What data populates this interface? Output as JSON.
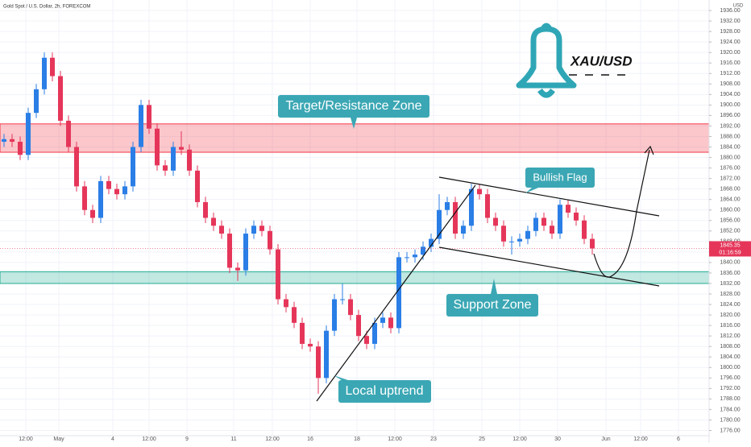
{
  "chart_data": {
    "type": "candlestick",
    "title": "Gold Spot / U.S. Dollar, 2h, FOREXCOM",
    "y_axis_label": "USD",
    "instrument_label": "XAU/USD",
    "up_color": "#2a7ee6",
    "down_color": "#e5365a",
    "xlim": [
      -0.5,
      87.5
    ],
    "xticks": [
      {
        "value": 2.7,
        "label": "12:00"
      },
      {
        "value": 6.8,
        "label": "May"
      },
      {
        "value": 13.5,
        "label": "4"
      },
      {
        "value": 18,
        "label": "12:00"
      },
      {
        "value": 22.7,
        "label": "9"
      },
      {
        "value": 28.5,
        "label": "11"
      },
      {
        "value": 33.3,
        "label": "12:00"
      },
      {
        "value": 38,
        "label": "16"
      },
      {
        "value": 43.8,
        "label": "18"
      },
      {
        "value": 48.5,
        "label": "12:00"
      },
      {
        "value": 53.3,
        "label": "23"
      },
      {
        "value": 59.3,
        "label": "25"
      },
      {
        "value": 64,
        "label": "12:00"
      },
      {
        "value": 68.7,
        "label": "30"
      },
      {
        "value": 74.7,
        "label": "Jun"
      },
      {
        "value": 79,
        "label": "12:00"
      },
      {
        "value": 83.7,
        "label": "6"
      }
    ],
    "ylim": [
      1774,
      1940
    ],
    "yticks": [
      {
        "value": 1776,
        "label": "1776.00"
      },
      {
        "value": 1780,
        "label": "1780.00"
      },
      {
        "value": 1784,
        "label": "1784.00"
      },
      {
        "value": 1788,
        "label": "1788.00"
      },
      {
        "value": 1792,
        "label": "1792.00"
      },
      {
        "value": 1796,
        "label": "1796.00"
      },
      {
        "value": 1800,
        "label": "1800.00"
      },
      {
        "value": 1804,
        "label": "1804.00"
      },
      {
        "value": 1808,
        "label": "1808.00"
      },
      {
        "value": 1812,
        "label": "1812.00"
      },
      {
        "value": 1816,
        "label": "1816.00"
      },
      {
        "value": 1820,
        "label": "1820.00"
      },
      {
        "value": 1824,
        "label": "1824.00"
      },
      {
        "value": 1828,
        "label": "1828.00"
      },
      {
        "value": 1832,
        "label": "1832.00"
      },
      {
        "value": 1836,
        "label": "1836.00"
      },
      {
        "value": 1840,
        "label": "1840.00"
      },
      {
        "value": 1844,
        "label": "1844.00"
      },
      {
        "value": 1848,
        "label": "1848.00"
      },
      {
        "value": 1852,
        "label": "1852.00"
      },
      {
        "value": 1856,
        "label": "1856.00"
      },
      {
        "value": 1860,
        "label": "1860.00"
      },
      {
        "value": 1864,
        "label": "1864.00"
      },
      {
        "value": 1868,
        "label": "1868.00"
      },
      {
        "value": 1872,
        "label": "1872.00"
      },
      {
        "value": 1876,
        "label": "1876.00"
      },
      {
        "value": 1880,
        "label": "1880.00"
      },
      {
        "value": 1884,
        "label": "1884.00"
      },
      {
        "value": 1888,
        "label": "1888.00"
      },
      {
        "value": 1892,
        "label": "1892.00"
      },
      {
        "value": 1896,
        "label": "1896.00"
      },
      {
        "value": 1900,
        "label": "1900.00"
      },
      {
        "value": 1904,
        "label": "1904.00"
      },
      {
        "value": 1908,
        "label": "1908.00"
      },
      {
        "value": 1912,
        "label": "1912.00"
      },
      {
        "value": 1916,
        "label": "1916.00"
      },
      {
        "value": 1920,
        "label": "1920.00"
      },
      {
        "value": 1924,
        "label": "1924.00"
      },
      {
        "value": 1928,
        "label": "1928.00"
      },
      {
        "value": 1932,
        "label": "1932.00"
      },
      {
        "value": 1936,
        "label": "1936.00"
      }
    ],
    "open": [
      1886,
      1887,
      1886,
      1881,
      1897,
      1906,
      1918,
      1911,
      1894,
      1884,
      1869,
      1860,
      1857,
      1871,
      1868,
      1866,
      1869,
      1884,
      1900,
      1891,
      1877,
      1875,
      1884,
      1883,
      1875,
      1863,
      1857,
      1854,
      1851,
      1838,
      1837,
      1851,
      1854,
      1852,
      1845,
      1826,
      1823,
      1817,
      1809,
      1808,
      1796,
      1814,
      1826,
      1826,
      1820,
      1812,
      1809,
      1817,
      1819,
      1815,
      1842,
      1842,
      1843,
      1846,
      1849,
      1860,
      1863,
      1851,
      1854,
      1868,
      1866,
      1857,
      1854,
      1848,
      1848,
      1849,
      1852,
      1857,
      1854,
      1851,
      1862,
      1859,
      1856,
      1849
    ],
    "high": [
      1889,
      1889,
      1888,
      1899,
      1908,
      1920,
      1920,
      1913,
      1896,
      1886,
      1871,
      1862,
      1873,
      1873,
      1870,
      1871,
      1886,
      1902,
      1902,
      1893,
      1879,
      1886,
      1890,
      1885,
      1877,
      1865,
      1859,
      1856,
      1853,
      1840,
      1853,
      1856,
      1856,
      1854,
      1847,
      1828,
      1825,
      1819,
      1811,
      1810,
      1816,
      1828,
      1832,
      1828,
      1822,
      1814,
      1819,
      1821,
      1821,
      1844,
      1844,
      1845,
      1848,
      1851,
      1866,
      1865,
      1865,
      1856,
      1870,
      1870,
      1868,
      1859,
      1856,
      1850,
      1851,
      1854,
      1859,
      1859,
      1856,
      1864,
      1864,
      1861,
      1858,
      1851
    ],
    "low": [
      1884,
      1884,
      1879,
      1879,
      1895,
      1904,
      1909,
      1892,
      1882,
      1867,
      1858,
      1855,
      1855,
      1866,
      1864,
      1864,
      1867,
      1882,
      1889,
      1875,
      1873,
      1873,
      1881,
      1873,
      1861,
      1855,
      1852,
      1849,
      1836,
      1833,
      1835,
      1849,
      1850,
      1843,
      1824,
      1821,
      1815,
      1807,
      1806,
      1790,
      1794,
      1812,
      1824,
      1818,
      1810,
      1807,
      1807,
      1815,
      1813,
      1813,
      1840,
      1840,
      1841,
      1844,
      1847,
      1858,
      1849,
      1849,
      1852,
      1864,
      1855,
      1852,
      1846,
      1843,
      1846,
      1847,
      1850,
      1852,
      1849,
      1849,
      1857,
      1854,
      1847,
      1843
    ],
    "close": [
      1887,
      1886,
      1881,
      1897,
      1906,
      1918,
      1911,
      1894,
      1884,
      1869,
      1860,
      1857,
      1871,
      1868,
      1866,
      1869,
      1884,
      1900,
      1891,
      1877,
      1875,
      1884,
      1883,
      1875,
      1863,
      1857,
      1854,
      1851,
      1838,
      1837,
      1851,
      1854,
      1852,
      1845,
      1826,
      1823,
      1817,
      1809,
      1808,
      1796,
      1814,
      1826,
      1826,
      1820,
      1812,
      1809,
      1817,
      1819,
      1815,
      1842,
      1842,
      1843,
      1846,
      1849,
      1860,
      1863,
      1851,
      1854,
      1868,
      1866,
      1857,
      1854,
      1848,
      1848,
      1849,
      1852,
      1857,
      1854,
      1851,
      1862,
      1859,
      1856,
      1849,
      1845.35
    ],
    "last_price": 1845.35,
    "countdown": "01:16:59",
    "zones": [
      {
        "label": "Target/Resistance Zone",
        "low": 1882,
        "high": 1892.8,
        "color": "#f23645"
      },
      {
        "label": "Support Zone",
        "low": 1832,
        "high": 1836.5,
        "color": "#22ab94"
      }
    ],
    "annotations": [
      "Bullish Flag",
      "Local uptrend"
    ]
  }
}
